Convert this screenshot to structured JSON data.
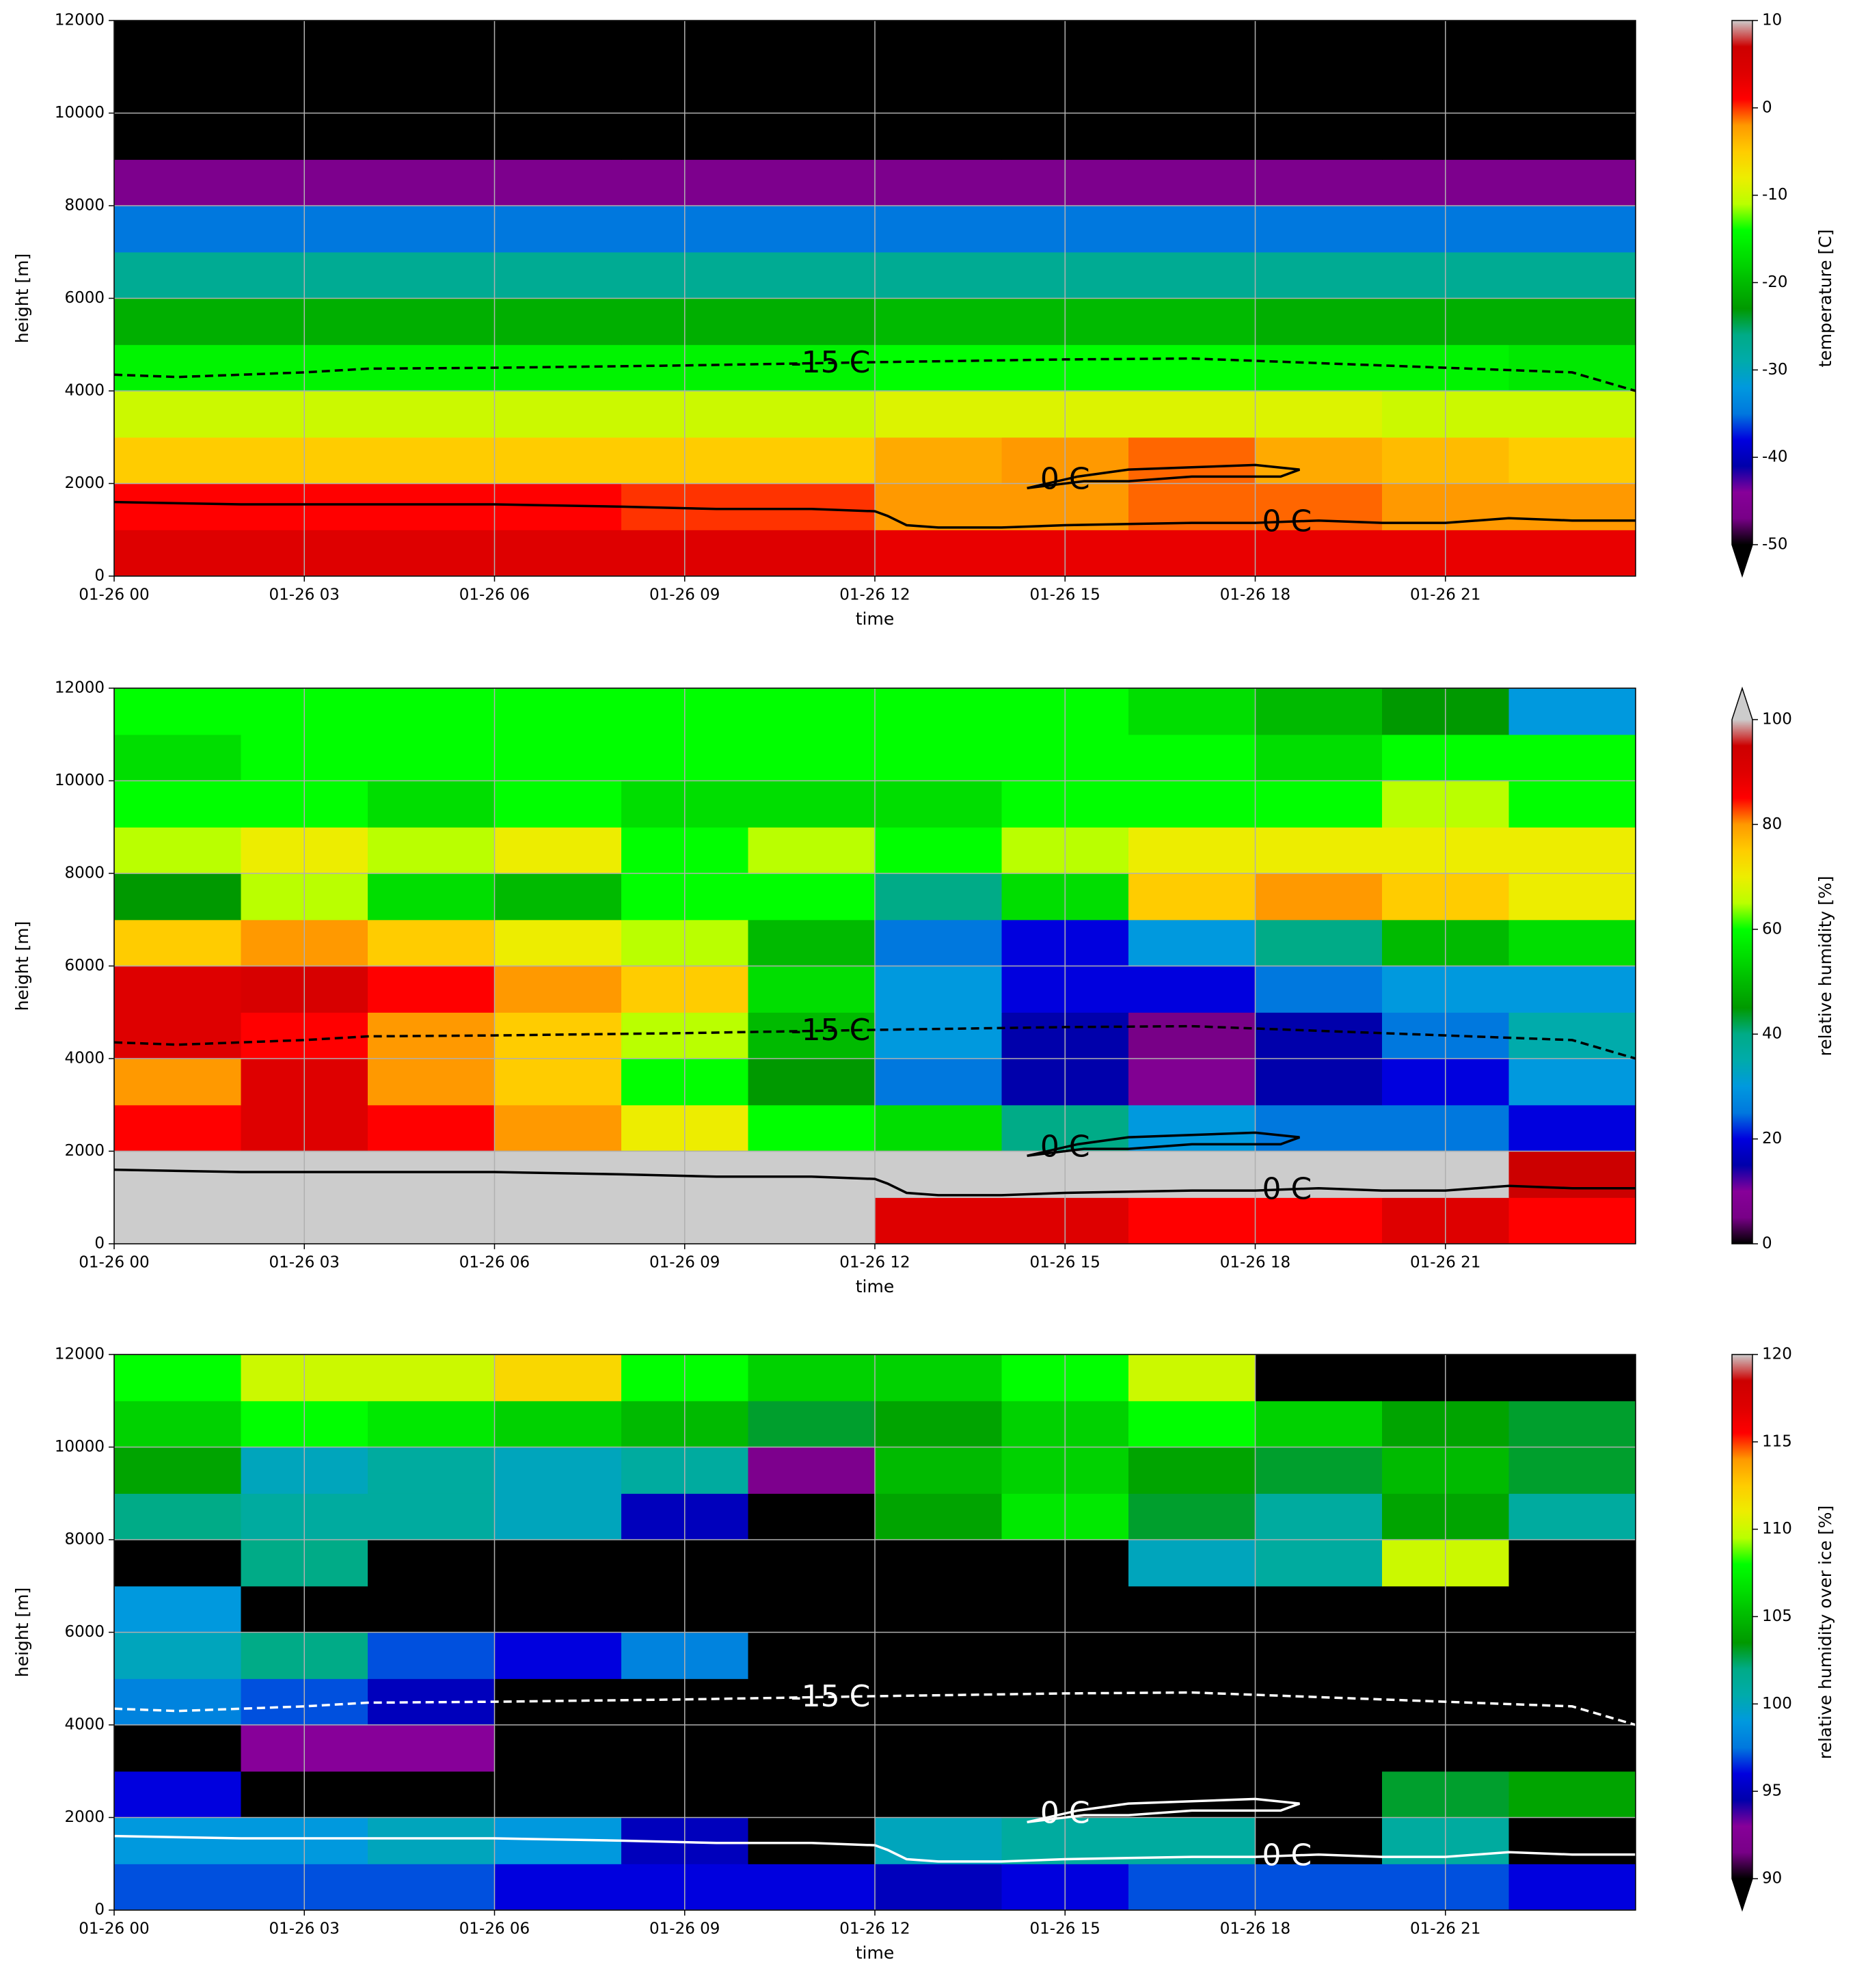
{
  "chart_data": [
    {
      "type": "heatmap",
      "xlabel": "time",
      "ylabel": "height [m]",
      "colorbar_label": "temperature [C]",
      "colormap": "nipy_spectral",
      "extend": "min",
      "contour_color": "#000000",
      "grid": true,
      "xlim": [
        0,
        24
      ],
      "ylim": [
        0,
        12000
      ],
      "clim": [
        -50,
        10
      ],
      "xticks": [
        {
          "value": 0,
          "label": "01-26 00"
        },
        {
          "value": 3,
          "label": "01-26 03"
        },
        {
          "value": 6,
          "label": "01-26 06"
        },
        {
          "value": 9,
          "label": "01-26 09"
        },
        {
          "value": 12,
          "label": "01-26 12"
        },
        {
          "value": 15,
          "label": "01-26 15"
        },
        {
          "value": 18,
          "label": "01-26 18"
        },
        {
          "value": 21,
          "label": "01-26 21"
        }
      ],
      "yticks": [
        0,
        2000,
        4000,
        6000,
        8000,
        10000,
        12000
      ],
      "cticks": [
        -50,
        -40,
        -30,
        -20,
        -10,
        0,
        10
      ],
      "x": [
        1,
        3,
        5,
        7,
        9,
        11,
        13,
        15,
        17,
        19,
        21,
        23
      ],
      "y": [
        500,
        1500,
        2500,
        3500,
        4500,
        5500,
        6500,
        7500,
        8500,
        9500,
        10500,
        11500
      ],
      "z": [
        [
          4,
          4,
          4,
          4,
          4,
          4,
          3,
          3,
          3,
          3,
          3,
          3
        ],
        [
          1,
          1,
          1,
          1,
          0,
          0,
          -2,
          -2,
          -1,
          -1,
          -2,
          -2
        ],
        [
          -5,
          -5,
          -5,
          -5,
          -5,
          -5,
          -3,
          -2,
          -1,
          -3,
          -4,
          -5
        ],
        [
          -10,
          -10,
          -10,
          -10,
          -10,
          -10,
          -9,
          -9,
          -9,
          -9,
          -10,
          -10
        ],
        [
          -15,
          -15,
          -15,
          -15,
          -15,
          -15,
          -14,
          -14,
          -14,
          -15,
          -15,
          -16
        ],
        [
          -21,
          -21,
          -21,
          -21,
          -21,
          -21,
          -20,
          -20,
          -20,
          -21,
          -21,
          -21
        ],
        [
          -27,
          -27,
          -27,
          -27,
          -27,
          -27,
          -27,
          -27,
          -27,
          -27,
          -27,
          -27
        ],
        [
          -35,
          -35,
          -35,
          -35,
          -35,
          -35,
          -35,
          -35,
          -35,
          -35,
          -35,
          -35
        ],
        [
          -46,
          -46,
          -46,
          -46,
          -46,
          -46,
          -46,
          -46,
          -46,
          -46,
          -46,
          -46
        ],
        [
          -60,
          -60,
          -60,
          -60,
          -60,
          -60,
          -60,
          -60,
          -60,
          -60,
          -60,
          -60
        ],
        [
          -60,
          -60,
          -60,
          -60,
          -60,
          -60,
          -60,
          -60,
          -60,
          -60,
          -60,
          -60
        ],
        [
          -60,
          -60,
          -60,
          -60,
          -60,
          -60,
          -60,
          -60,
          -60,
          -60,
          -60,
          -60
        ]
      ],
      "contours": [
        {
          "label": "-15 C",
          "style": "dashed",
          "x": [
            0,
            1,
            2,
            3,
            4,
            6,
            9,
            12,
            15,
            17,
            19,
            21,
            23,
            24
          ],
          "y": [
            4350,
            4300,
            4350,
            4400,
            4480,
            4500,
            4550,
            4620,
            4680,
            4700,
            4600,
            4500,
            4400,
            4000
          ]
        },
        {
          "label": "0 C",
          "style": "solid",
          "x": [
            0,
            2,
            4,
            6,
            8,
            9.5,
            11,
            12,
            12.2,
            12.5,
            13,
            14,
            15,
            17,
            18,
            19,
            20,
            21,
            22,
            23,
            24
          ],
          "y": [
            1600,
            1550,
            1550,
            1550,
            1500,
            1450,
            1450,
            1400,
            1300,
            1100,
            1050,
            1050,
            1100,
            1150,
            1150,
            1200,
            1150,
            1150,
            1250,
            1200,
            1200
          ]
        },
        {
          "label": "0 C",
          "style": "solid",
          "x": [
            14.4,
            15.2,
            16,
            17,
            18,
            18.7,
            18.4,
            17,
            16,
            15.3,
            14.4
          ],
          "y": [
            1900,
            2150,
            2300,
            2350,
            2400,
            2300,
            2150,
            2150,
            2050,
            2050,
            1900
          ]
        }
      ]
    },
    {
      "type": "heatmap",
      "xlabel": "time",
      "ylabel": "height [m]",
      "colorbar_label": "relative humidity [%]",
      "colormap": "nipy_spectral",
      "extend": "max",
      "contour_color": "#000000",
      "grid": true,
      "xlim": [
        0,
        24
      ],
      "ylim": [
        0,
        12000
      ],
      "clim": [
        0,
        100
      ],
      "xticks": [
        {
          "value": 0,
          "label": "01-26 00"
        },
        {
          "value": 3,
          "label": "01-26 03"
        },
        {
          "value": 6,
          "label": "01-26 06"
        },
        {
          "value": 9,
          "label": "01-26 09"
        },
        {
          "value": 12,
          "label": "01-26 12"
        },
        {
          "value": 15,
          "label": "01-26 15"
        },
        {
          "value": 18,
          "label": "01-26 18"
        },
        {
          "value": 21,
          "label": "01-26 21"
        }
      ],
      "yticks": [
        0,
        2000,
        4000,
        6000,
        8000,
        10000,
        12000
      ],
      "cticks": [
        0,
        20,
        40,
        60,
        80,
        100
      ],
      "x": [
        1,
        3,
        5,
        7,
        9,
        11,
        13,
        15,
        17,
        19,
        21,
        23
      ],
      "y": [
        500,
        1500,
        2500,
        3500,
        4500,
        5500,
        6500,
        7500,
        8500,
        9500,
        10500,
        11500
      ],
      "z": [
        [
          105,
          105,
          105,
          105,
          105,
          105,
          90,
          90,
          85,
          85,
          90,
          85
        ],
        [
          105,
          105,
          105,
          105,
          105,
          105,
          105,
          105,
          105,
          105,
          105,
          95
        ],
        [
          85,
          90,
          85,
          80,
          70,
          60,
          55,
          40,
          30,
          25,
          25,
          20
        ],
        [
          80,
          90,
          80,
          75,
          60,
          45,
          25,
          15,
          8,
          15,
          20,
          30
        ],
        [
          90,
          85,
          80,
          75,
          65,
          50,
          30,
          15,
          5,
          15,
          25,
          35
        ],
        [
          90,
          92,
          85,
          80,
          75,
          55,
          30,
          20,
          20,
          25,
          30,
          30
        ],
        [
          75,
          80,
          75,
          70,
          65,
          50,
          25,
          20,
          30,
          40,
          50,
          55
        ],
        [
          45,
          65,
          55,
          50,
          60,
          60,
          40,
          55,
          75,
          80,
          75,
          70
        ],
        [
          65,
          70,
          65,
          70,
          60,
          65,
          60,
          65,
          70,
          70,
          70,
          70
        ],
        [
          60,
          60,
          55,
          60,
          55,
          55,
          55,
          60,
          60,
          60,
          65,
          60
        ],
        [
          55,
          60,
          60,
          60,
          60,
          60,
          60,
          60,
          60,
          55,
          60,
          60
        ],
        [
          60,
          60,
          60,
          60,
          60,
          60,
          60,
          60,
          55,
          50,
          45,
          30
        ]
      ],
      "contours": [
        {
          "label": "-15 C",
          "style": "dashed",
          "x": [
            0,
            1,
            2,
            3,
            4,
            6,
            9,
            12,
            15,
            17,
            19,
            21,
            23,
            24
          ],
          "y": [
            4350,
            4300,
            4350,
            4400,
            4480,
            4500,
            4550,
            4620,
            4680,
            4700,
            4600,
            4500,
            4400,
            4000
          ]
        },
        {
          "label": "0 C",
          "style": "solid",
          "x": [
            0,
            2,
            4,
            6,
            8,
            9.5,
            11,
            12,
            12.2,
            12.5,
            13,
            14,
            15,
            17,
            18,
            19,
            20,
            21,
            22,
            23,
            24
          ],
          "y": [
            1600,
            1550,
            1550,
            1550,
            1500,
            1450,
            1450,
            1400,
            1300,
            1100,
            1050,
            1050,
            1100,
            1150,
            1150,
            1200,
            1150,
            1150,
            1250,
            1200,
            1200
          ]
        },
        {
          "label": "0 C",
          "style": "solid",
          "x": [
            14.4,
            15.2,
            16,
            17,
            18,
            18.7,
            18.4,
            17,
            16,
            15.3,
            14.4
          ],
          "y": [
            1900,
            2150,
            2300,
            2350,
            2400,
            2300,
            2150,
            2150,
            2050,
            2050,
            1900
          ]
        }
      ]
    },
    {
      "type": "heatmap",
      "xlabel": "time",
      "ylabel": "height [m]",
      "colorbar_label": "relative humidity over ice [%]",
      "colormap": "nipy_spectral",
      "extend": "min",
      "contour_color": "#ffffff",
      "grid": true,
      "xlim": [
        0,
        24
      ],
      "ylim": [
        0,
        12000
      ],
      "clim": [
        90,
        120
      ],
      "xticks": [
        {
          "value": 0,
          "label": "01-26 00"
        },
        {
          "value": 3,
          "label": "01-26 03"
        },
        {
          "value": 6,
          "label": "01-26 06"
        },
        {
          "value": 9,
          "label": "01-26 09"
        },
        {
          "value": 12,
          "label": "01-26 12"
        },
        {
          "value": 15,
          "label": "01-26 15"
        },
        {
          "value": 18,
          "label": "01-26 18"
        },
        {
          "value": 21,
          "label": "01-26 21"
        }
      ],
      "yticks": [
        0,
        2000,
        4000,
        6000,
        8000,
        10000,
        12000
      ],
      "cticks": [
        90,
        95,
        100,
        105,
        110,
        115,
        120
      ],
      "x": [
        1,
        3,
        5,
        7,
        9,
        11,
        13,
        15,
        17,
        19,
        21,
        23
      ],
      "y": [
        500,
        1500,
        2500,
        3500,
        4500,
        5500,
        6500,
        7500,
        8500,
        9500,
        10500,
        11500
      ],
      "z": [
        [
          97,
          97,
          97,
          96,
          96,
          96,
          95,
          96,
          97,
          97,
          97,
          96
        ],
        [
          99,
          99,
          100,
          99,
          95,
          80,
          100,
          101,
          101,
          80,
          101,
          80
        ],
        [
          96,
          80,
          80,
          80,
          80,
          80,
          80,
          80,
          80,
          80,
          103,
          104
        ],
        [
          80,
          93,
          93,
          80,
          80,
          80,
          80,
          80,
          80,
          80,
          80,
          80
        ],
        [
          98,
          97,
          95,
          80,
          80,
          80,
          80,
          80,
          80,
          80,
          80,
          80
        ],
        [
          100,
          102,
          97,
          96,
          98,
          80,
          80,
          80,
          80,
          80,
          80,
          80
        ],
        [
          99,
          80,
          80,
          80,
          80,
          80,
          80,
          80,
          80,
          80,
          80,
          80
        ],
        [
          80,
          102,
          80,
          80,
          80,
          80,
          80,
          80,
          100,
          101,
          110,
          80
        ],
        [
          102,
          101,
          101,
          100,
          95,
          80,
          104,
          107,
          103,
          101,
          104,
          101
        ],
        [
          104,
          100,
          101,
          100,
          101,
          92,
          105,
          106,
          104,
          103,
          105,
          103
        ],
        [
          106,
          108,
          107,
          106,
          105,
          103,
          104,
          106,
          108,
          106,
          104,
          103
        ],
        [
          108,
          110,
          110,
          112,
          108,
          106,
          106,
          108,
          110,
          80,
          80,
          80
        ]
      ],
      "contours": [
        {
          "label": "-15 C",
          "style": "dashed",
          "x": [
            0,
            1,
            2,
            3,
            4,
            6,
            9,
            12,
            15,
            17,
            19,
            21,
            23,
            24
          ],
          "y": [
            4350,
            4300,
            4350,
            4400,
            4480,
            4500,
            4550,
            4620,
            4680,
            4700,
            4600,
            4500,
            4400,
            4000
          ]
        },
        {
          "label": "0 C",
          "style": "solid",
          "x": [
            0,
            2,
            4,
            6,
            8,
            9.5,
            11,
            12,
            12.2,
            12.5,
            13,
            14,
            15,
            17,
            18,
            19,
            20,
            21,
            22,
            23,
            24
          ],
          "y": [
            1600,
            1550,
            1550,
            1550,
            1500,
            1450,
            1450,
            1400,
            1300,
            1100,
            1050,
            1050,
            1100,
            1150,
            1150,
            1200,
            1150,
            1150,
            1250,
            1200,
            1200
          ]
        },
        {
          "label": "0 C",
          "style": "solid",
          "x": [
            14.4,
            15.2,
            16,
            17,
            18,
            18.7,
            18.4,
            17,
            16,
            15.3,
            14.4
          ],
          "y": [
            1900,
            2150,
            2300,
            2350,
            2400,
            2300,
            2150,
            2150,
            2050,
            2050,
            1900
          ]
        }
      ]
    }
  ]
}
